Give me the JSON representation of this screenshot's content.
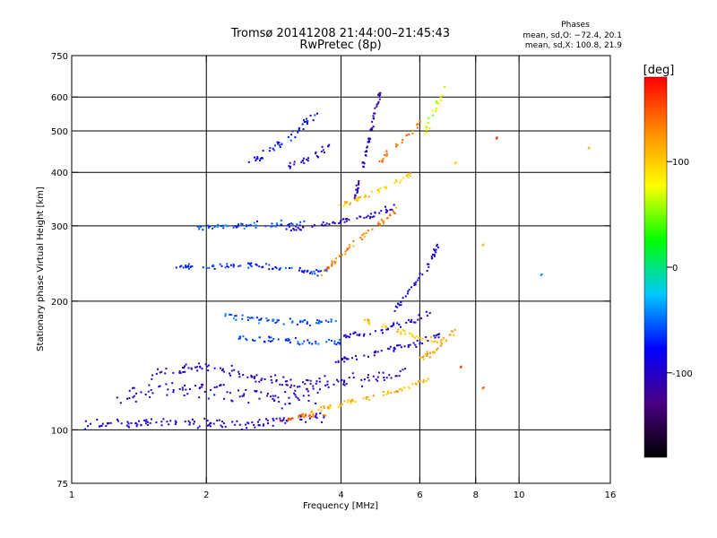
{
  "chart_data": {
    "type": "scatter",
    "title": "Tromsø 20141208 21:44:00–21:45:43",
    "subtitle": "RwPretec (8p)",
    "xlabel": "Frequency [MHz]",
    "ylabel": "Stationary phase Virtual Height [km]",
    "xscale": "log",
    "yscale": "log",
    "xlim": [
      1,
      16
    ],
    "ylim": [
      75,
      750
    ],
    "xticks": [
      1,
      2,
      4,
      6,
      8,
      10,
      16
    ],
    "xtick_labels": [
      "1",
      "2",
      "4",
      "6",
      "8",
      "10",
      "16"
    ],
    "yticks": [
      75,
      100,
      200,
      300,
      400,
      500,
      600,
      750
    ],
    "ytick_labels": [
      "75",
      "100",
      "200",
      "300",
      "400",
      "500",
      "600",
      "750"
    ],
    "xgrid": [
      2,
      4,
      6,
      8,
      10
    ],
    "ygrid": [
      100,
      200,
      300,
      400,
      500,
      600
    ],
    "grid": true,
    "legend": {
      "title": "Phases",
      "lines": [
        "mean, sd,O: −72.4, 20.1",
        "mean, sd,X: 100.8, 21.9"
      ],
      "placement": "top-right"
    },
    "colorbar": {
      "label": "[deg]",
      "range": [
        -180,
        180
      ],
      "ticks": [
        100,
        0,
        -100
      ],
      "tick_labels": [
        "100",
        "0",
        "-100"
      ],
      "stops": [
        "#000000",
        "#4b0082",
        "#0000ff",
        "#00c8ff",
        "#00ff00",
        "#ffff00",
        "#ff8c00",
        "#ff0000"
      ]
    },
    "series": [
      {
        "x": [
          1.05,
          1.6,
          2.2,
          2.7,
          3.3,
          3.7
        ],
        "y": [
          103,
          104,
          103,
          104,
          106,
          108
        ],
        "phase": -95,
        "spread": 0.03
      },
      {
        "x": [
          1.3,
          1.8,
          2.4,
          3.0,
          3.6
        ],
        "y": [
          120,
          125,
          122,
          118,
          124
        ],
        "phase": -100,
        "spread": 0.06
      },
      {
        "x": [
          1.5,
          2.0,
          2.6,
          3.2,
          3.8,
          4.6,
          5.5
        ],
        "y": [
          135,
          140,
          132,
          128,
          130,
          132,
          135
        ],
        "phase": -105,
        "spread": 0.04
      },
      {
        "x": [
          2.9,
          3.3,
          3.7
        ],
        "y": [
          105,
          108,
          108
        ],
        "phase": 140,
        "spread": 0.015
      },
      {
        "x": [
          3.4,
          4.0,
          4.8,
          5.6,
          6.3
        ],
        "y": [
          110,
          115,
          120,
          125,
          133
        ],
        "phase": 110,
        "spread": 0.015
      },
      {
        "x": [
          2.3,
          2.9,
          3.5,
          4.0
        ],
        "y": [
          163,
          162,
          160,
          160
        ],
        "phase": -60,
        "spread": 0.02
      },
      {
        "x": [
          2.2,
          2.8,
          3.4,
          3.9
        ],
        "y": [
          185,
          180,
          178,
          182
        ],
        "phase": -55,
        "spread": 0.02
      },
      {
        "x": [
          3.9,
          4.6,
          5.3,
          6.0,
          6.7
        ],
        "y": [
          145,
          150,
          155,
          160,
          168
        ],
        "phase": -100,
        "spread": 0.02
      },
      {
        "x": [
          4.0,
          4.8,
          5.6,
          6.3
        ],
        "y": [
          165,
          170,
          178,
          187
        ],
        "phase": -95,
        "spread": 0.02
      },
      {
        "x": [
          4.5,
          5.0,
          5.6,
          6.2,
          6.8
        ],
        "y": [
          180,
          175,
          168,
          163,
          160
        ],
        "phase": 105,
        "spread": 0.02
      },
      {
        "x": [
          5.8,
          6.3,
          6.8,
          7.2
        ],
        "y": [
          145,
          150,
          160,
          172
        ],
        "phase": 120,
        "spread": 0.02
      },
      {
        "x": [
          1.7,
          2.0,
          2.4,
          2.8,
          3.3,
          3.8
        ],
        "y": [
          240,
          240,
          243,
          240,
          235,
          233
        ],
        "phase": -70,
        "spread": 0.02
      },
      {
        "x": [
          1.9,
          2.3,
          2.8,
          3.3
        ],
        "y": [
          297,
          300,
          302,
          305
        ],
        "phase": -60,
        "spread": 0.02
      },
      {
        "x": [
          3.0,
          3.5,
          4.1,
          4.7,
          5.3
        ],
        "y": [
          295,
          300,
          308,
          318,
          333
        ],
        "phase": -100,
        "spread": 0.02
      },
      {
        "x": [
          3.6,
          4.0,
          4.4,
          4.9,
          5.4
        ],
        "y": [
          230,
          255,
          280,
          305,
          330
        ],
        "phase": 135,
        "spread": 0.02
      },
      {
        "x": [
          3.9,
          4.3,
          4.8,
          5.3,
          5.8
        ],
        "y": [
          330,
          345,
          360,
          380,
          400
        ],
        "phase": 100,
        "spread": 0.02
      },
      {
        "x": [
          4.3,
          4.5,
          4.7,
          4.9
        ],
        "y": [
          350,
          420,
          520,
          620
        ],
        "phase": -105,
        "spread": 0.015
      },
      {
        "x": [
          5.3,
          5.6,
          6.1,
          6.6
        ],
        "y": [
          190,
          210,
          230,
          270
        ],
        "phase": -90,
        "spread": 0.02
      },
      {
        "x": [
          2.5,
          2.8,
          3.2,
          3.6
        ],
        "y": [
          420,
          450,
          500,
          560
        ],
        "phase": -75,
        "spread": 0.03
      },
      {
        "x": [
          3.0,
          3.4,
          3.8
        ],
        "y": [
          410,
          430,
          460
        ],
        "phase": -100,
        "spread": 0.03
      },
      {
        "x": [
          4.9,
          5.4,
          6.0
        ],
        "y": [
          420,
          470,
          520
        ],
        "phase": 140,
        "spread": 0.03
      },
      {
        "x": [
          6.2,
          6.5,
          6.8
        ],
        "y": [
          500,
          560,
          620
        ],
        "phase": 70,
        "spread": 0.03
      }
    ],
    "isolated_points": [
      {
        "x": 8.9,
        "y": 480,
        "phase": 170
      },
      {
        "x": 14.3,
        "y": 455,
        "phase": 110
      },
      {
        "x": 11.2,
        "y": 230,
        "phase": -40
      },
      {
        "x": 8.3,
        "y": 270,
        "phase": 110
      },
      {
        "x": 7.2,
        "y": 420,
        "phase": 100
      },
      {
        "x": 8.3,
        "y": 125,
        "phase": 150
      },
      {
        "x": 7.4,
        "y": 140,
        "phase": 160
      }
    ]
  }
}
